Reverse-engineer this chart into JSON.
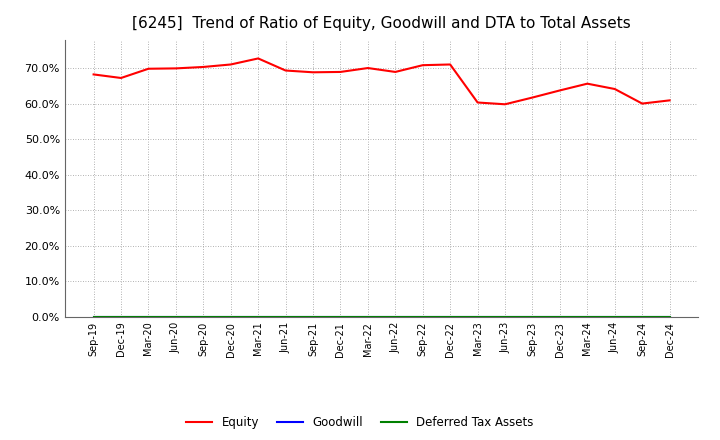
{
  "title": "[6245]  Trend of Ratio of Equity, Goodwill and DTA to Total Assets",
  "x_labels": [
    "Sep-19",
    "Dec-19",
    "Mar-20",
    "Jun-20",
    "Sep-20",
    "Dec-20",
    "Mar-21",
    "Jun-21",
    "Sep-21",
    "Dec-21",
    "Mar-22",
    "Jun-22",
    "Sep-22",
    "Dec-22",
    "Mar-23",
    "Jun-23",
    "Sep-23",
    "Dec-23",
    "Mar-24",
    "Jun-24",
    "Sep-24",
    "Dec-24"
  ],
  "equity": [
    0.682,
    0.672,
    0.698,
    0.699,
    0.703,
    0.71,
    0.727,
    0.693,
    0.688,
    0.689,
    0.7,
    0.689,
    0.708,
    0.71,
    0.603,
    0.598,
    0.617,
    0.637,
    0.656,
    0.641,
    0.6,
    0.609
  ],
  "goodwill": [
    0.0,
    0.0,
    0.0,
    0.0,
    0.0,
    0.0,
    0.0,
    0.0,
    0.0,
    0.0,
    0.0,
    0.0,
    0.0,
    0.0,
    0.0,
    0.0,
    0.0,
    0.0,
    0.0,
    0.0,
    0.0,
    0.0
  ],
  "dta": [
    0.0,
    0.0,
    0.0,
    0.0,
    0.0,
    0.0,
    0.0,
    0.0,
    0.0,
    0.0,
    0.0,
    0.0,
    0.0,
    0.0,
    0.0,
    0.0,
    0.0,
    0.0,
    0.0,
    0.0,
    0.0,
    0.0
  ],
  "equity_color": "#FF0000",
  "goodwill_color": "#0000FF",
  "dta_color": "#008000",
  "ylim": [
    0.0,
    0.78
  ],
  "yticks": [
    0.0,
    0.1,
    0.2,
    0.3,
    0.4,
    0.5,
    0.6,
    0.7
  ],
  "background_color": "#FFFFFF",
  "grid_color": "#999999",
  "title_fontsize": 11,
  "legend_labels": [
    "Equity",
    "Goodwill",
    "Deferred Tax Assets"
  ]
}
